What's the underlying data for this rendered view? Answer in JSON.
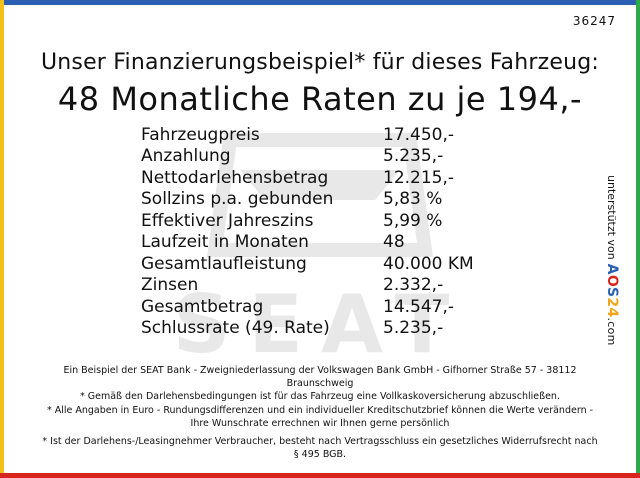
{
  "offer_id": "36247",
  "headline": "Unser Finanzierungsbeispiel* für dieses Fahrzeug:",
  "subheadline": "48 Monatliche Raten zu je 194,-",
  "terms": [
    {
      "label": "Fahrzeugpreis",
      "value": "17.450,-"
    },
    {
      "label": "Anzahlung",
      "value": "5.235,-"
    },
    {
      "label": "Nettodarlehensbetrag",
      "value": "12.215,-"
    },
    {
      "label": "Sollzins p.a. gebunden",
      "value": "5,83 %"
    },
    {
      "label": "Effektiver Jahreszins",
      "value": "5,99 %"
    },
    {
      "label": "Laufzeit in Monaten",
      "value": "48"
    },
    {
      "label": "Gesamtlaufleistung",
      "value": "40.000 KM"
    },
    {
      "label": "Zinsen",
      "value": "2.332,-"
    },
    {
      "label": "Gesamtbetrag",
      "value": "14.547,-"
    },
    {
      "label": "Schlussrate (49. Rate)",
      "value": "5.235,-"
    }
  ],
  "sponsor": {
    "text": "unterstützt von",
    "logo_parts": [
      "A",
      "O",
      "S",
      "24",
      ".com"
    ]
  },
  "watermark_logo": "SEAT",
  "footnotes": [
    "Ein Beispiel der SEAT Bank - Zweigniederlassung der Volkswagen Bank GmbH - Gifhorner Straße 57 - 38112 Braunschweig",
    "* Gemäß den Darlehensbedingungen ist für das Fahrzeug eine Vollkaskoversicherung abzuschließen.",
    "* Alle Angaben in Euro - Rundungsdifferenzen und ein individueller Kreditschutzbrief können die Werte verändern - Ihre Wunschrate errechnen wir Ihnen gerne persönlich",
    "* Ist der Darlehens-/Leasingnehmer Verbraucher, besteht nach Vertragsschluss ein gesetzliches Widerrufsrecht nach § 495 BGB."
  ],
  "colors": {
    "top_bar": "#2b5fb4",
    "left_bar": "#f2c21b",
    "right_bar": "#2fa84a",
    "bottom_bar": "#d7261e"
  }
}
